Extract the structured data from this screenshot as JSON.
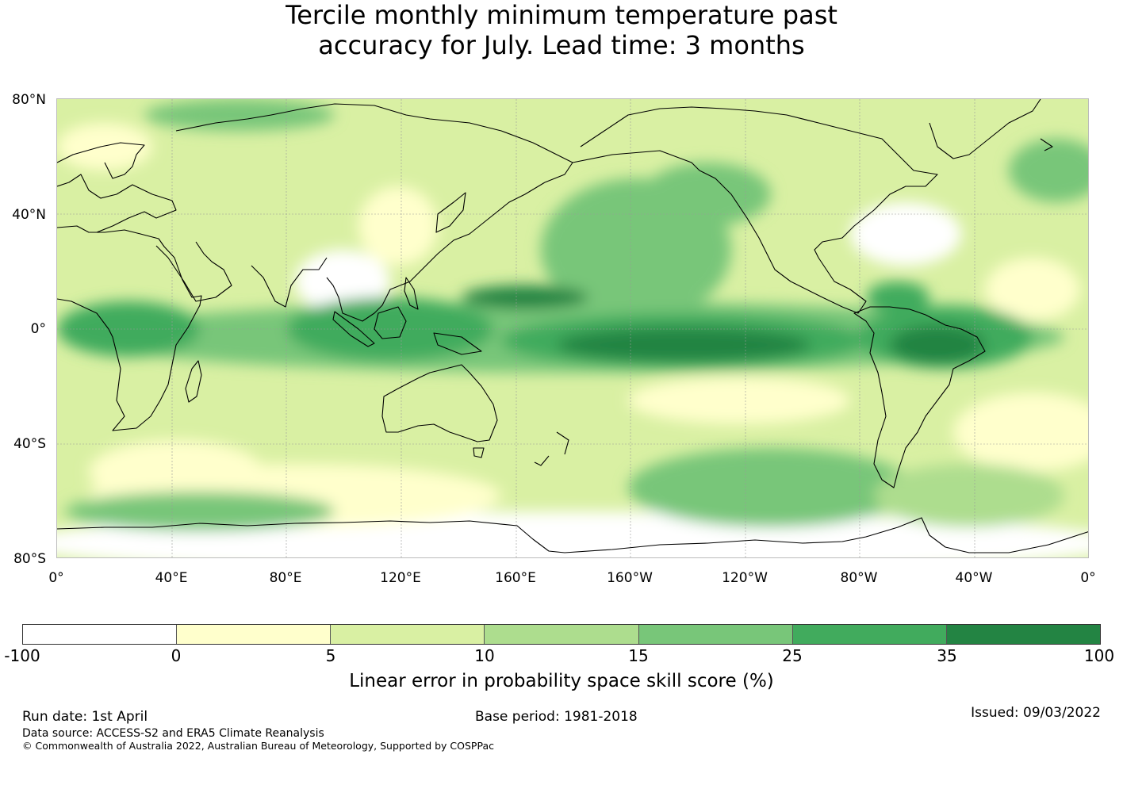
{
  "title": {
    "line1": "Tercile monthly minimum temperature past",
    "line2": "accuracy for July. Lead time: 3 months"
  },
  "map": {
    "projection": "equirectangular, 0° to 360° longitude, 80°S to 80°N",
    "lat_labels": [
      "80°N",
      "40°N",
      "0°",
      "40°S",
      "80°S"
    ],
    "lon_labels": [
      "0°",
      "40°E",
      "80°E",
      "120°E",
      "160°E",
      "160°W",
      "120°W",
      "80°W",
      "40°W",
      "0°"
    ],
    "gridlines": true,
    "coastlines": true
  },
  "colorbar": {
    "ticks": [
      "-100",
      "0",
      "5",
      "10",
      "15",
      "25",
      "35",
      "100"
    ],
    "colors": [
      "#ffffff",
      "#ffffcc",
      "#d9f0a3",
      "#addd8e",
      "#78c679",
      "#41ab5d",
      "#238443"
    ],
    "label": "Linear error in probability space skill score (%)"
  },
  "footer": {
    "run_date": "Run date: 1st April",
    "base_period": "Base period: 1981-2018",
    "issued": "Issued: 09/03/2022",
    "data_source": "Data source: ACCESS-S2 and ERA5 Climate Reanalysis",
    "copyright": "© Commonwealth of Australia 2022, Australian Bureau of Meteorology, Supported by COSPPac"
  }
}
